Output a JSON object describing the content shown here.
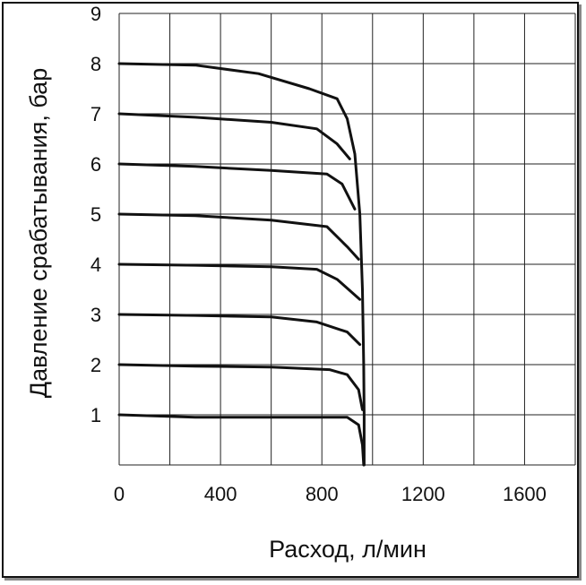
{
  "chart_data": {
    "type": "line",
    "title": "",
    "xlabel": "Расход, л/мин",
    "ylabel": "Давление срабатывания, бар",
    "xlim": [
      0,
      1800
    ],
    "ylim": [
      0,
      9
    ],
    "xticks": [
      0,
      400,
      800,
      1200,
      1600
    ],
    "xtick_labels": [
      "0",
      "400",
      "800",
      "1200",
      "1600"
    ],
    "yticks": [
      1,
      2,
      3,
      4,
      5,
      6,
      7,
      8,
      9
    ],
    "ytick_labels": [
      "1",
      "2",
      "3",
      "4",
      "5",
      "6",
      "7",
      "8",
      "9"
    ],
    "grid": true,
    "legend": "none",
    "line_color": "#111111",
    "series": [
      {
        "points": [
          [
            0,
            1.0
          ],
          [
            300,
            0.95
          ],
          [
            600,
            0.95
          ],
          [
            900,
            0.95
          ],
          [
            945,
            0.8
          ],
          [
            960,
            0.4
          ],
          [
            965,
            0.0
          ]
        ]
      },
      {
        "points": [
          [
            0,
            2.0
          ],
          [
            300,
            1.97
          ],
          [
            600,
            1.95
          ],
          [
            830,
            1.9
          ],
          [
            900,
            1.8
          ],
          [
            945,
            1.5
          ],
          [
            960,
            1.1
          ]
        ]
      },
      {
        "points": [
          [
            0,
            3.0
          ],
          [
            300,
            2.98
          ],
          [
            600,
            2.95
          ],
          [
            780,
            2.85
          ],
          [
            900,
            2.65
          ],
          [
            950,
            2.4
          ]
        ]
      },
      {
        "points": [
          [
            0,
            4.0
          ],
          [
            300,
            3.98
          ],
          [
            600,
            3.95
          ],
          [
            780,
            3.9
          ],
          [
            860,
            3.7
          ],
          [
            950,
            3.3
          ]
        ]
      },
      {
        "points": [
          [
            0,
            5.0
          ],
          [
            300,
            4.97
          ],
          [
            600,
            4.88
          ],
          [
            820,
            4.75
          ],
          [
            900,
            4.35
          ],
          [
            945,
            4.1
          ]
        ]
      },
      {
        "points": [
          [
            0,
            6.0
          ],
          [
            300,
            5.95
          ],
          [
            600,
            5.87
          ],
          [
            820,
            5.8
          ],
          [
            880,
            5.6
          ],
          [
            930,
            5.1
          ]
        ]
      },
      {
        "points": [
          [
            0,
            7.0
          ],
          [
            300,
            6.93
          ],
          [
            600,
            6.83
          ],
          [
            780,
            6.7
          ],
          [
            860,
            6.4
          ],
          [
            910,
            6.1
          ]
        ]
      },
      {
        "points": [
          [
            0,
            8.0
          ],
          [
            300,
            7.97
          ],
          [
            550,
            7.8
          ],
          [
            750,
            7.5
          ],
          [
            860,
            7.3
          ],
          [
            900,
            6.9
          ],
          [
            930,
            6.2
          ],
          [
            950,
            5.0
          ],
          [
            960,
            3.5
          ],
          [
            965,
            2.0
          ],
          [
            967,
            1.0
          ],
          [
            967,
            0.0
          ]
        ]
      }
    ]
  }
}
